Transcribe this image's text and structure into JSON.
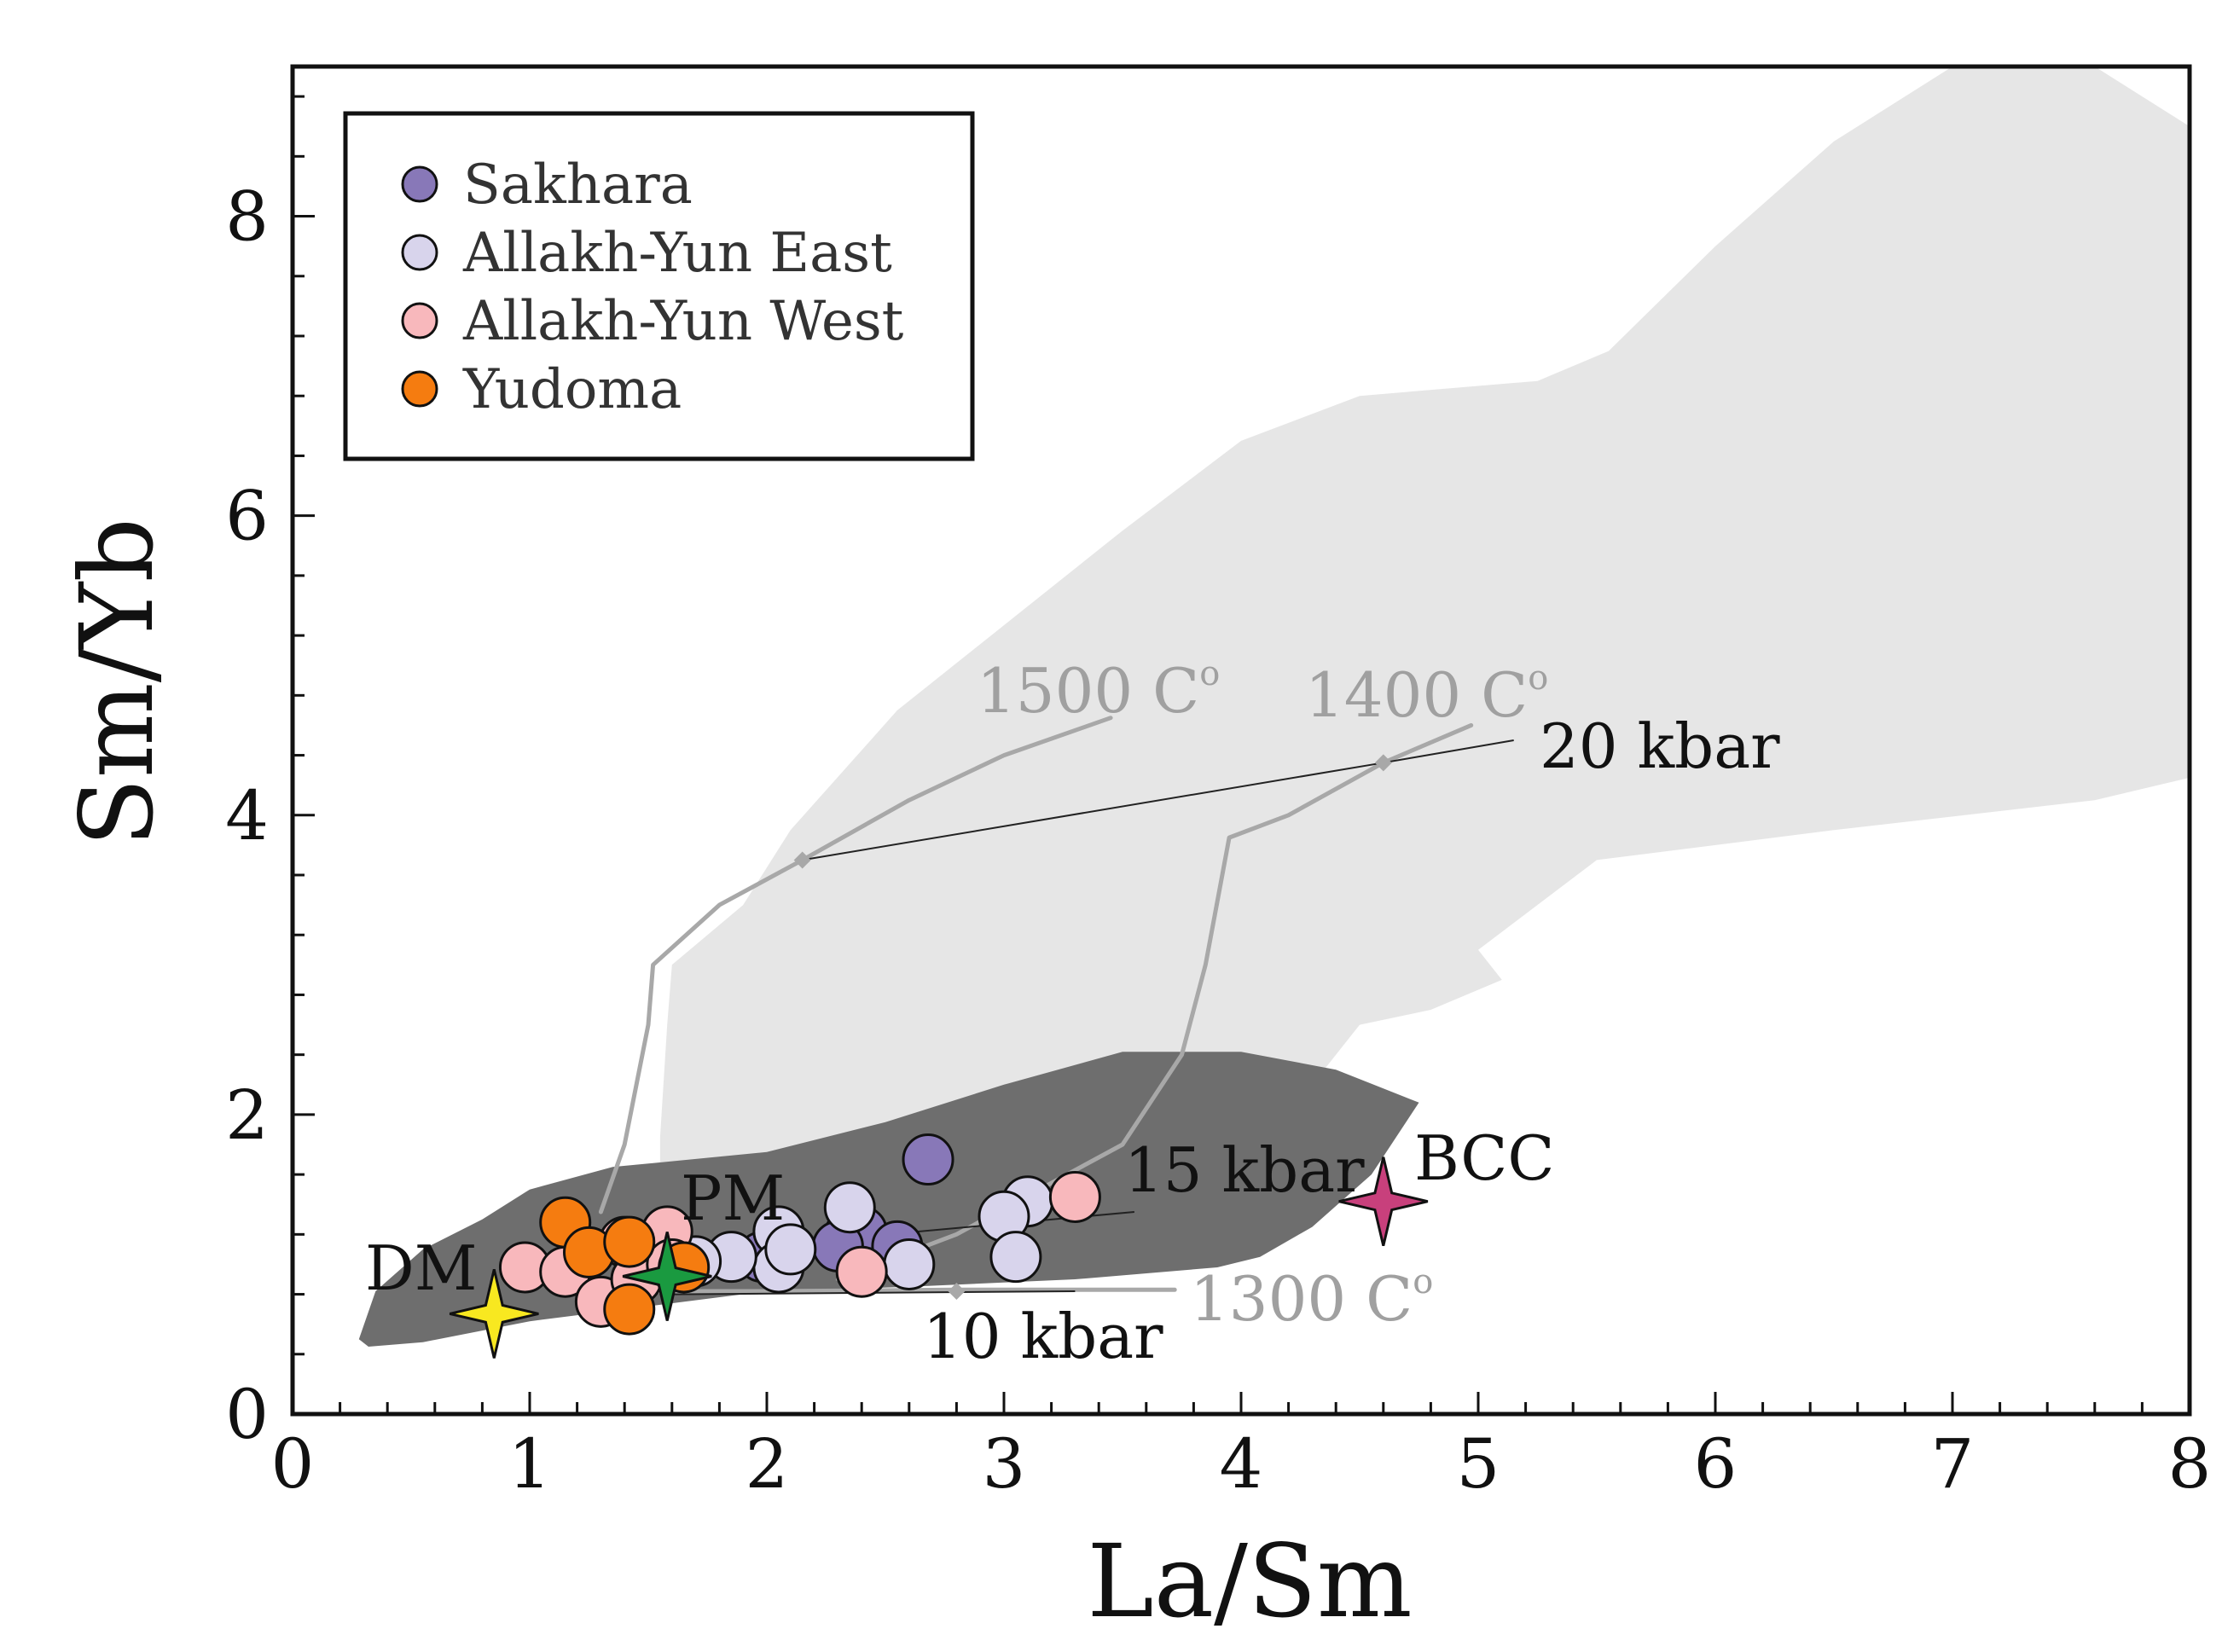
{
  "chart_data": {
    "type": "scatter",
    "title": "",
    "xlabel": "La/Sm",
    "ylabel": "Sm/Yb",
    "xlim": [
      0,
      8
    ],
    "ylim": [
      0,
      9
    ],
    "xticks": [
      "0",
      "1",
      "2",
      "3",
      "4",
      "5",
      "6",
      "7",
      "8"
    ],
    "yticks": [
      "0",
      "2",
      "4",
      "6",
      "8"
    ],
    "legend_position": "top-left",
    "series": [
      {
        "name": "Sakhara",
        "color": "#8878b8",
        "points": [
          [
            2.68,
            1.7
          ],
          [
            2.35,
            1.2
          ],
          [
            2.4,
            1.22
          ],
          [
            2.55,
            1.12
          ],
          [
            2.3,
            1.12
          ],
          [
            1.98,
            1.05
          ]
        ]
      },
      {
        "name": "Allakh-Yun East",
        "color": "#d8d4ec",
        "points": [
          [
            2.35,
            1.38
          ],
          [
            3.1,
            1.42
          ],
          [
            3.0,
            1.32
          ],
          [
            3.05,
            1.05
          ],
          [
            2.6,
            1.0
          ],
          [
            2.05,
            1.22
          ],
          [
            2.05,
            0.98
          ],
          [
            1.85,
            1.05
          ],
          [
            1.7,
            1.02
          ],
          [
            2.1,
            1.1
          ]
        ]
      },
      {
        "name": "Allakh-Yun West",
        "color": "#f8b8bc",
        "points": [
          [
            3.3,
            1.45
          ],
          [
            1.58,
            1.22
          ],
          [
            1.4,
            1.15
          ],
          [
            0.98,
            0.98
          ],
          [
            1.15,
            0.95
          ],
          [
            1.3,
            0.75
          ],
          [
            1.45,
            0.9
          ],
          [
            1.6,
            1.0
          ],
          [
            2.4,
            0.95
          ]
        ]
      },
      {
        "name": "Yudoma",
        "color": "#f57c10",
        "points": [
          [
            1.15,
            1.28
          ],
          [
            1.25,
            1.08
          ],
          [
            1.42,
            1.15
          ],
          [
            1.42,
            0.7
          ],
          [
            1.65,
            0.98
          ]
        ]
      }
    ],
    "reference_points": [
      {
        "label": "DM",
        "x": 0.85,
        "y": 0.67,
        "color": "#f8e820"
      },
      {
        "label": "PM",
        "x": 1.58,
        "y": 0.92,
        "color": "#1a9a40"
      },
      {
        "label": "BCC",
        "x": 4.6,
        "y": 1.42,
        "color": "#c8407c"
      }
    ],
    "fields": [
      {
        "name": "light-field",
        "color": "#e6e6e6",
        "points": [
          [
            1.6,
            3.0
          ],
          [
            1.9,
            3.4
          ],
          [
            2.1,
            3.9
          ],
          [
            2.55,
            4.7
          ],
          [
            3.5,
            5.9
          ],
          [
            4.0,
            6.5
          ],
          [
            4.5,
            6.8
          ],
          [
            5.25,
            6.9
          ],
          [
            5.55,
            7.1
          ],
          [
            6.0,
            7.8
          ],
          [
            6.5,
            8.5
          ],
          [
            7.0,
            9.0
          ],
          [
            7.6,
            9.0
          ],
          [
            8.0,
            8.6
          ],
          [
            8.0,
            4.25
          ],
          [
            7.6,
            4.1
          ],
          [
            6.5,
            3.9
          ],
          [
            5.5,
            3.7
          ],
          [
            5.0,
            3.1
          ],
          [
            5.1,
            2.9
          ],
          [
            4.8,
            2.7
          ],
          [
            4.5,
            2.6
          ],
          [
            4.3,
            2.2
          ],
          [
            3.6,
            1.9
          ],
          [
            2.8,
            1.65
          ],
          [
            2.2,
            1.5
          ],
          [
            1.55,
            1.3
          ],
          [
            1.55,
            1.85
          ],
          [
            1.58,
            2.6
          ]
        ]
      },
      {
        "name": "dark-field",
        "color": "#6e6e6e",
        "points": [
          [
            0.28,
            0.5
          ],
          [
            0.35,
            0.82
          ],
          [
            0.55,
            1.1
          ],
          [
            0.8,
            1.3
          ],
          [
            1.0,
            1.5
          ],
          [
            1.35,
            1.65
          ],
          [
            2.0,
            1.75
          ],
          [
            2.5,
            1.95
          ],
          [
            3.0,
            2.2
          ],
          [
            3.5,
            2.42
          ],
          [
            4.0,
            2.42
          ],
          [
            4.4,
            2.3
          ],
          [
            4.75,
            2.08
          ],
          [
            4.55,
            1.6
          ],
          [
            4.3,
            1.25
          ],
          [
            4.08,
            1.05
          ],
          [
            3.9,
            0.98
          ],
          [
            3.3,
            0.9
          ],
          [
            2.6,
            0.85
          ],
          [
            2.0,
            0.82
          ],
          [
            1.5,
            0.72
          ],
          [
            1.0,
            0.62
          ],
          [
            0.55,
            0.48
          ],
          [
            0.32,
            0.45
          ]
        ]
      }
    ],
    "curves": [
      {
        "label": "1500 C",
        "superscript": "o",
        "color": "#a8a8a8",
        "points": [
          [
            1.3,
            1.35
          ],
          [
            1.4,
            1.8
          ],
          [
            1.5,
            2.6
          ],
          [
            1.52,
            3.0
          ],
          [
            1.8,
            3.4
          ],
          [
            2.15,
            3.7
          ],
          [
            2.6,
            4.1
          ],
          [
            3.0,
            4.4
          ],
          [
            3.45,
            4.65
          ]
        ]
      },
      {
        "label": "1400 C",
        "superscript": "o",
        "color": "#a8a8a8",
        "points": [
          [
            2.3,
            0.9
          ],
          [
            2.8,
            1.2
          ],
          [
            3.5,
            1.8
          ],
          [
            3.75,
            2.4
          ],
          [
            3.85,
            3.0
          ],
          [
            3.95,
            3.85
          ],
          [
            4.2,
            4.0
          ],
          [
            4.6,
            4.35
          ],
          [
            4.97,
            4.6
          ]
        ]
      },
      {
        "label": "1300 C",
        "superscript": "o",
        "color": "#a8a8a8",
        "points": [
          [
            1.3,
            0.82
          ],
          [
            2.0,
            0.82
          ],
          [
            2.8,
            0.83
          ],
          [
            3.4,
            0.83
          ],
          [
            3.72,
            0.83
          ]
        ]
      }
    ],
    "isobars": [
      {
        "label": "20 kbar",
        "points": [
          [
            2.15,
            3.7
          ],
          [
            4.6,
            4.35
          ],
          [
            5.15,
            4.5
          ]
        ]
      },
      {
        "label": "15 kbar",
        "points": [
          [
            1.6,
            1.07
          ],
          [
            3.55,
            1.35
          ]
        ]
      },
      {
        "label": "10 kbar",
        "points": [
          [
            1.6,
            0.8
          ],
          [
            3.3,
            0.82
          ]
        ]
      }
    ],
    "pressure_markers": [
      [
        2.15,
        3.7
      ],
      [
        4.6,
        4.35
      ],
      [
        2.8,
        0.82
      ]
    ]
  }
}
